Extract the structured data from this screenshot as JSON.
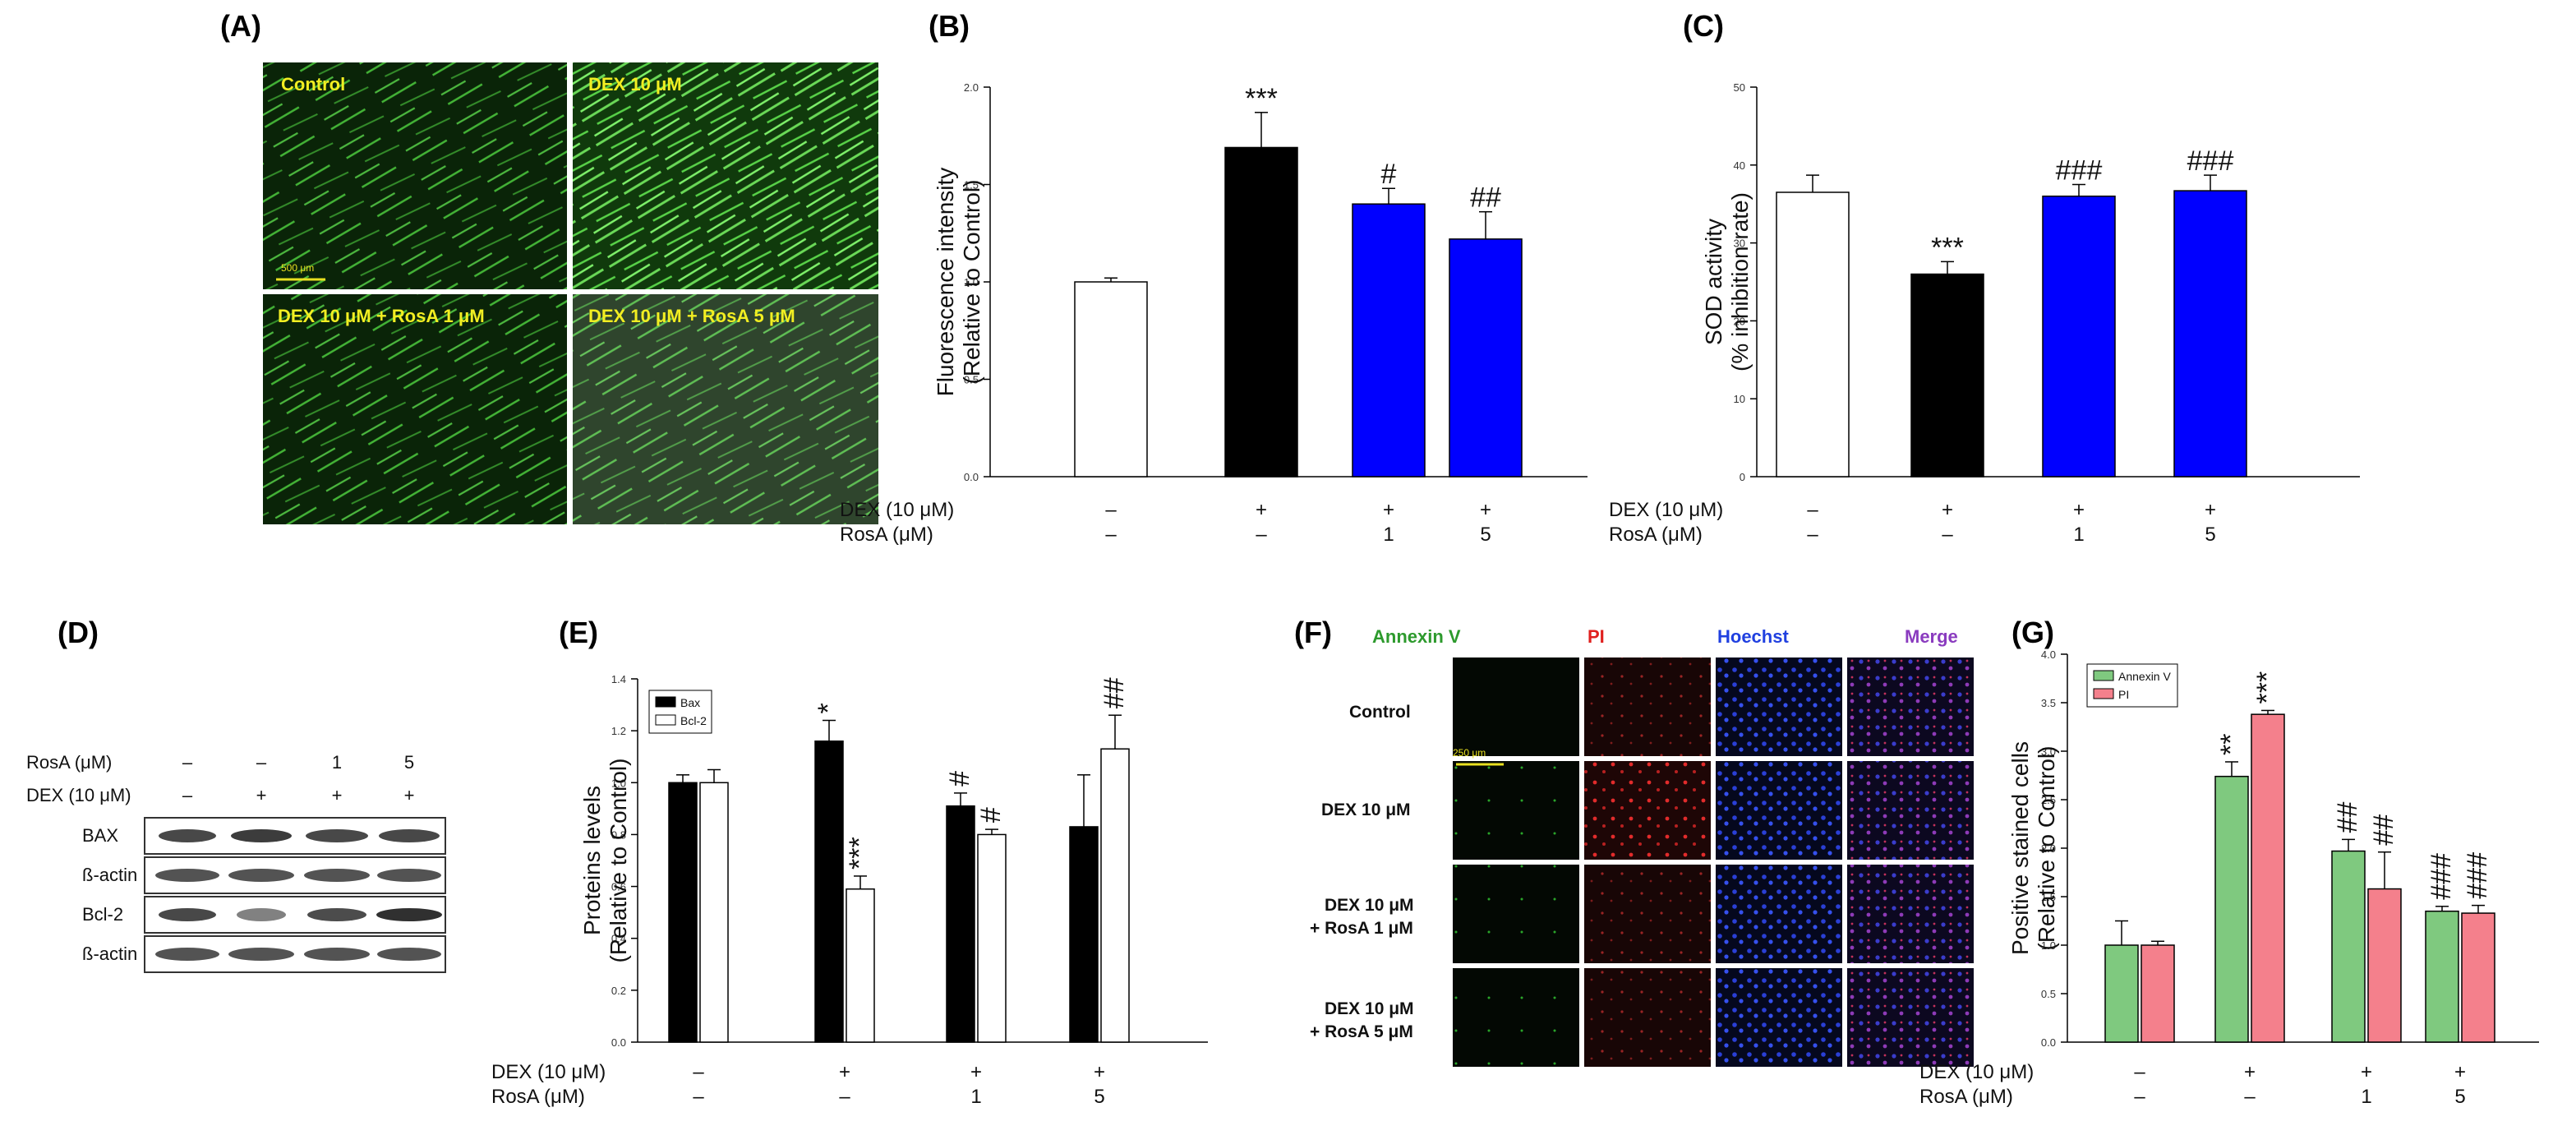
{
  "panels": {
    "A": {
      "letter": "(A)",
      "images": [
        {
          "label": "Control",
          "scale_bar": "500 μm"
        },
        {
          "label": "DEX 10 μM",
          "scale_bar": ""
        },
        {
          "label": "DEX 10 μM + RosA 1 μM",
          "scale_bar": ""
        },
        {
          "label": "DEX 10 μM + RosA 5 μM",
          "scale_bar": ""
        }
      ]
    },
    "D": {
      "letter": "(D)",
      "treatment_rows": [
        {
          "label": "RosA (μM)",
          "values": [
            "–",
            "–",
            "1",
            "5"
          ]
        },
        {
          "label": "DEX (10 μM)",
          "values": [
            "–",
            "+",
            "+",
            "+"
          ]
        }
      ],
      "bands": [
        "BAX",
        "ß-actin",
        "Bcl-2",
        "ß-actin"
      ]
    },
    "F": {
      "letter": "(F)",
      "columns": [
        "Annexin V",
        "PI",
        "Hoechst",
        "Merge"
      ],
      "column_colors": [
        "#2d9a2d",
        "#e0201e",
        "#2040e0",
        "#8a3bbf"
      ],
      "rows": [
        "Control",
        "DEX 10 μM",
        "DEX 10 μM\n+ RosA 1 μM",
        "DEX 10 μM\n+ RosA 5 μM"
      ],
      "scale_bar": "250 μm"
    }
  },
  "conditions": {
    "labels": [
      "DEX (10 μM)",
      "RosA (μM)"
    ],
    "dex": [
      "–",
      "+",
      "+",
      "+"
    ],
    "rosa": [
      "–",
      "–",
      "1",
      "5"
    ]
  },
  "chart_data": [
    {
      "id": "B",
      "letter": "(B)",
      "type": "bar",
      "ylabel": [
        "Fluorescence intensity",
        "(Relative to Control)"
      ],
      "ylim": [
        0,
        2.0
      ],
      "yticks": [
        0.0,
        0.5,
        1.0,
        1.5,
        2.0
      ],
      "tick_format": 1,
      "series": [
        {
          "name": "",
          "values": [
            1.0,
            1.69,
            1.4,
            1.22
          ],
          "errors": [
            0.02,
            0.18,
            0.08,
            0.14
          ],
          "colors": [
            "#ffffff",
            "#000000",
            "#0000ff",
            "#0000ff"
          ],
          "sig": [
            "",
            "***",
            "#",
            "##"
          ]
        }
      ],
      "legend": null
    },
    {
      "id": "C",
      "letter": "(C)",
      "type": "bar",
      "ylabel": [
        "SOD activity",
        "(% inhibition rate)"
      ],
      "ylim": [
        0,
        50
      ],
      "yticks": [
        0,
        10,
        20,
        30,
        40,
        50
      ],
      "tick_format": 0,
      "series": [
        {
          "name": "",
          "values": [
            36.5,
            26.0,
            36.0,
            36.7
          ],
          "errors": [
            2.2,
            1.6,
            1.5,
            2.0
          ],
          "colors": [
            "#ffffff",
            "#000000",
            "#0000ff",
            "#0000ff"
          ],
          "sig": [
            "",
            "***",
            "###",
            "###"
          ]
        }
      ],
      "legend": null
    },
    {
      "id": "E",
      "letter": "(E)",
      "type": "bar",
      "ylabel": [
        "Proteins levels",
        "(Relative to Control)"
      ],
      "ylim": [
        0,
        1.4
      ],
      "yticks": [
        0.0,
        0.2,
        0.4,
        0.6,
        0.8,
        1.0,
        1.2,
        1.4
      ],
      "tick_format": 1,
      "series": [
        {
          "name": "Bax",
          "values": [
            1.0,
            1.16,
            0.91,
            0.83
          ],
          "errors": [
            0.03,
            0.08,
            0.05,
            0.2
          ],
          "color": "#000000",
          "sig": [
            "",
            "*",
            "#",
            ""
          ],
          "sig_rotated": true
        },
        {
          "name": "Bcl-2",
          "values": [
            1.0,
            0.59,
            0.8,
            1.13
          ],
          "errors": [
            0.05,
            0.05,
            0.02,
            0.13
          ],
          "color": "#ffffff",
          "sig": [
            "",
            "***",
            "#",
            "##"
          ],
          "sig_rotated": true
        }
      ],
      "legend": "top-left"
    },
    {
      "id": "G",
      "letter": "(G)",
      "type": "bar",
      "ylabel": [
        "Positive stained cells",
        "(Relative to Control)"
      ],
      "ylim": [
        0,
        4.0
      ],
      "yticks": [
        0.0,
        0.5,
        1.0,
        1.5,
        2.0,
        2.5,
        3.0,
        3.5,
        4.0
      ],
      "tick_format": 1,
      "series": [
        {
          "name": "Annexin V",
          "values": [
            1.0,
            2.74,
            1.97,
            1.35
          ],
          "errors": [
            0.25,
            0.15,
            0.12,
            0.05
          ],
          "color": "#7fc97f",
          "sig": [
            "",
            "**",
            "##",
            "###"
          ],
          "sig_rotated": true
        },
        {
          "name": "PI",
          "values": [
            1.0,
            3.38,
            1.58,
            1.33
          ],
          "errors": [
            0.04,
            0.04,
            0.38,
            0.08
          ],
          "color": "#f4808c",
          "sig": [
            "",
            "***",
            "##",
            "###"
          ],
          "sig_rotated": true
        }
      ],
      "legend": "top-left"
    }
  ]
}
